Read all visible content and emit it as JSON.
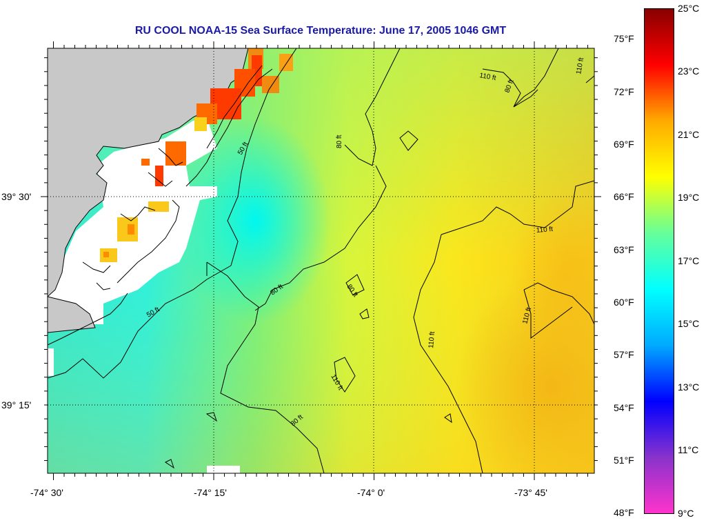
{
  "title": "RU COOL  NOAA-15  Sea Surface Temperature:  June 17, 2005 1046 GMT",
  "lat_labels": [
    "39° 30'",
    "39° 15'"
  ],
  "lon_labels": [
    "-74° 30'",
    "-74° 15'",
    "-74° 0'",
    "-73° 45'"
  ],
  "fahrenheit_labels": [
    "75°F",
    "72°F",
    "69°F",
    "66°F",
    "63°F",
    "60°F",
    "57°F",
    "54°F",
    "51°F",
    "48°F"
  ],
  "celsius_labels": [
    "25°C",
    "23°C",
    "21°C",
    "19°C",
    "17°C",
    "15°C",
    "13°C",
    "11°C",
    "9°C"
  ],
  "contours": [
    {
      "label": "50 ft"
    },
    {
      "label": "50 ft"
    },
    {
      "label": "80 ft"
    },
    {
      "label": "80 ft"
    },
    {
      "label": "80 ft"
    },
    {
      "label": "80 ft"
    },
    {
      "label": "80 ft"
    },
    {
      "label": "110 ft"
    },
    {
      "label": "110 ft"
    },
    {
      "label": "110 ft"
    },
    {
      "label": "110 ft"
    },
    {
      "label": "110 ft"
    },
    {
      "label": "110 ft"
    }
  ],
  "colors": {
    "land": "#c8c8c8",
    "no_data": "#ffffff",
    "title": "#1a1aa6",
    "colorbar_stops": [
      "#ff33cc",
      "#8833cc",
      "#0000ff",
      "#00aaff",
      "#00ffff",
      "#66ff99",
      "#ffff00",
      "#ffaa00",
      "#ff0000",
      "#880000"
    ]
  }
}
